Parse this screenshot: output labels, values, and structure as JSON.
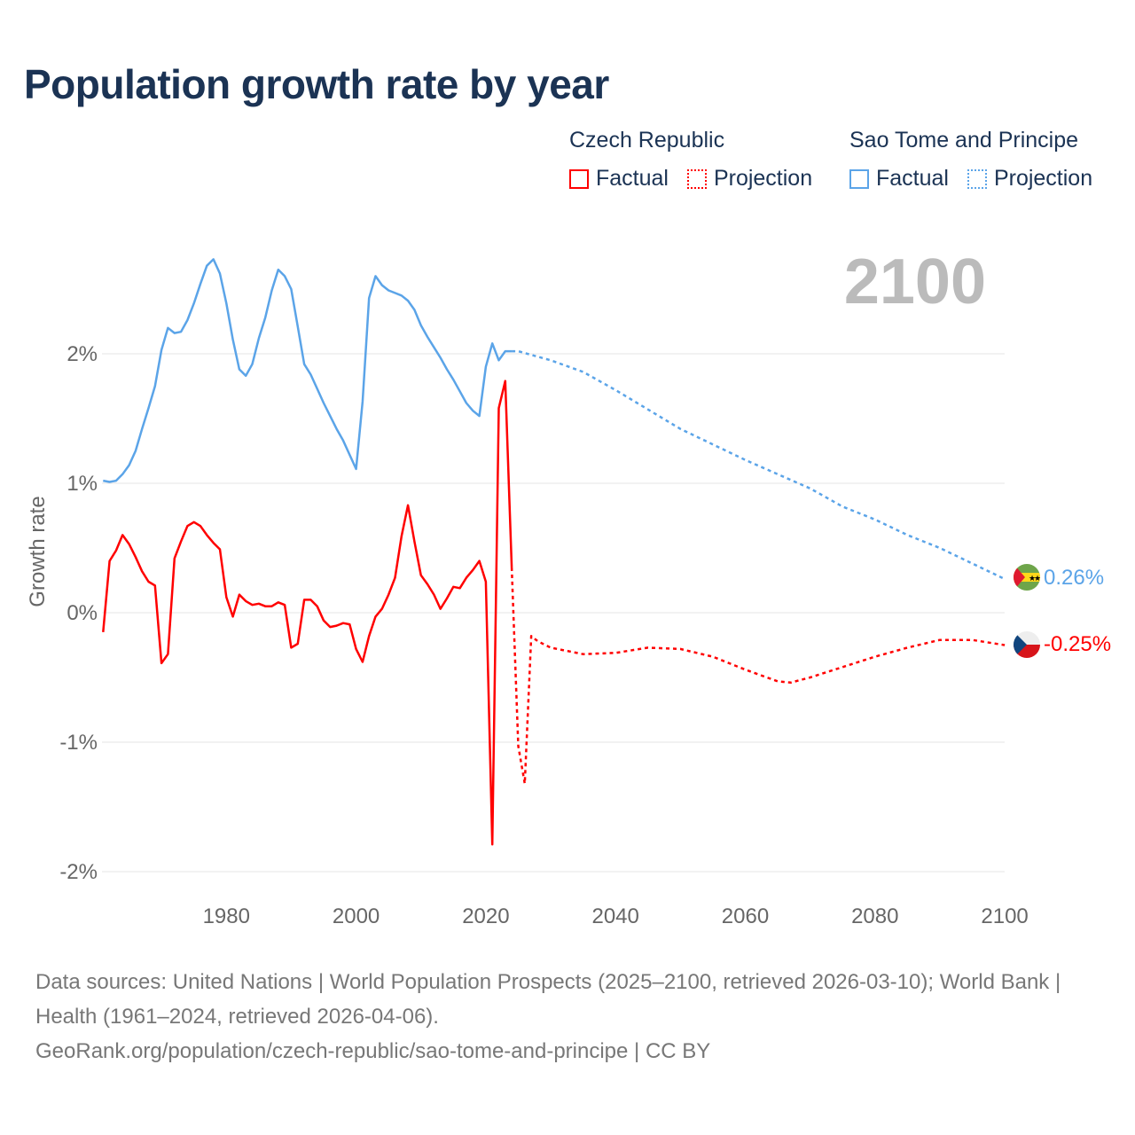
{
  "title": "Population growth rate by year",
  "legend": {
    "groups": [
      {
        "name": "Czech Republic",
        "color": "#ff0000",
        "factual": "Factual",
        "projection": "Projection"
      },
      {
        "name": "Sao Tome and Principe",
        "color": "#5ba4e8",
        "factual": "Factual",
        "projection": "Projection"
      }
    ]
  },
  "year_label": "2100",
  "footer": {
    "sources": "Data sources: United Nations | World Population Prospects (2025–2100, retrieved 2026-03-10); World Bank | Health (1961–2024, retrieved 2026-04-06).",
    "link": "GeoRank.org/population/czech-republic/sao-tome-and-principe | CC BY"
  },
  "chart_data": {
    "type": "line",
    "title": "Population growth rate by year",
    "xlabel": "",
    "ylabel": "Growth rate",
    "xlim": [
      1961,
      2100
    ],
    "ylim": [
      -2.1,
      2.9
    ],
    "grid": true,
    "legend_position": "top-right",
    "x_ticks": [
      1980,
      2000,
      2020,
      2040,
      2060,
      2080,
      2100
    ],
    "x_tick_labels": [
      "1980",
      "2000",
      "2020",
      "2040",
      "2060",
      "2080",
      "2100"
    ],
    "y_ticks": [
      2,
      1,
      0,
      -1,
      -2
    ],
    "y_tick_labels": [
      "2%",
      "1%",
      "0%",
      "-1%",
      "-2%"
    ],
    "series": [
      {
        "name": "Czech Republic",
        "color": "#ff0000",
        "end_label": "-0.25%",
        "factual": {
          "x": [
            1961,
            1962,
            1963,
            1964,
            1965,
            1966,
            1967,
            1968,
            1969,
            1970,
            1971,
            1972,
            1973,
            1974,
            1975,
            1976,
            1977,
            1978,
            1979,
            1980,
            1981,
            1982,
            1983,
            1984,
            1985,
            1986,
            1987,
            1988,
            1989,
            1990,
            1991,
            1992,
            1993,
            1994,
            1995,
            1996,
            1997,
            1998,
            1999,
            2000,
            2001,
            2002,
            2003,
            2004,
            2005,
            2006,
            2007,
            2008,
            2009,
            2010,
            2011,
            2012,
            2013,
            2014,
            2015,
            2016,
            2017,
            2018,
            2019,
            2020,
            2021,
            2022,
            2023,
            2024
          ],
          "y": [
            -0.15,
            0.4,
            0.48,
            0.6,
            0.53,
            0.43,
            0.32,
            0.24,
            0.21,
            -0.39,
            -0.32,
            0.42,
            0.55,
            0.67,
            0.7,
            0.67,
            0.6,
            0.54,
            0.49,
            0.12,
            -0.03,
            0.14,
            0.09,
            0.06,
            0.07,
            0.05,
            0.05,
            0.08,
            0.06,
            -0.27,
            -0.24,
            0.1,
            0.1,
            0.05,
            -0.06,
            -0.11,
            -0.1,
            -0.08,
            -0.09,
            -0.28,
            -0.38,
            -0.18,
            -0.03,
            0.03,
            0.14,
            0.27,
            0.59,
            0.83,
            0.55,
            0.29,
            0.22,
            0.14,
            0.03,
            0.11,
            0.2,
            0.19,
            0.27,
            0.33,
            0.4,
            0.24,
            -1.79,
            1.58,
            1.79,
            0.35
          ]
        },
        "projection": {
          "x": [
            2024,
            2025,
            2026,
            2027,
            2028,
            2030,
            2035,
            2040,
            2045,
            2050,
            2055,
            2060,
            2065,
            2067,
            2070,
            2075,
            2080,
            2085,
            2090,
            2095,
            2100
          ],
          "y": [
            0.35,
            -1.03,
            -1.32,
            -0.18,
            -0.22,
            -0.27,
            -0.32,
            -0.31,
            -0.27,
            -0.28,
            -0.34,
            -0.44,
            -0.53,
            -0.54,
            -0.5,
            -0.42,
            -0.34,
            -0.27,
            -0.21,
            -0.21,
            -0.25
          ]
        }
      },
      {
        "name": "Sao Tome and Principe",
        "color": "#5ba4e8",
        "end_label": "0.26%",
        "factual": {
          "x": [
            1961,
            1962,
            1963,
            1964,
            1965,
            1966,
            1967,
            1968,
            1969,
            1970,
            1971,
            1972,
            1973,
            1974,
            1975,
            1976,
            1977,
            1978,
            1979,
            1980,
            1981,
            1982,
            1983,
            1984,
            1985,
            1986,
            1987,
            1988,
            1989,
            1990,
            1991,
            1992,
            1993,
            1994,
            1995,
            1996,
            1997,
            1998,
            1999,
            2000,
            2001,
            2002,
            2003,
            2004,
            2005,
            2006,
            2007,
            2008,
            2009,
            2010,
            2011,
            2012,
            2013,
            2014,
            2015,
            2016,
            2017,
            2018,
            2019,
            2020,
            2021,
            2022,
            2023,
            2024
          ],
          "y": [
            1.02,
            1.01,
            1.02,
            1.07,
            1.14,
            1.25,
            1.42,
            1.58,
            1.75,
            2.03,
            2.2,
            2.16,
            2.17,
            2.26,
            2.39,
            2.54,
            2.68,
            2.73,
            2.62,
            2.39,
            2.11,
            1.88,
            1.83,
            1.92,
            2.12,
            2.28,
            2.49,
            2.65,
            2.6,
            2.5,
            2.21,
            1.92,
            1.84,
            1.73,
            1.62,
            1.52,
            1.42,
            1.33,
            1.22,
            1.11,
            1.63,
            2.43,
            2.6,
            2.53,
            2.49,
            2.47,
            2.45,
            2.41,
            2.34,
            2.22,
            2.13,
            2.05,
            1.97,
            1.88,
            1.8,
            1.71,
            1.62,
            1.56,
            1.52,
            1.9,
            2.08,
            1.95,
            2.02,
            2.02
          ]
        },
        "projection": {
          "x": [
            2024,
            2025,
            2030,
            2035,
            2040,
            2045,
            2050,
            2055,
            2060,
            2065,
            2070,
            2075,
            2080,
            2085,
            2090,
            2095,
            2100
          ],
          "y": [
            2.02,
            2.02,
            1.95,
            1.86,
            1.72,
            1.57,
            1.42,
            1.3,
            1.18,
            1.07,
            0.96,
            0.82,
            0.72,
            0.6,
            0.5,
            0.38,
            0.26
          ]
        }
      }
    ]
  }
}
